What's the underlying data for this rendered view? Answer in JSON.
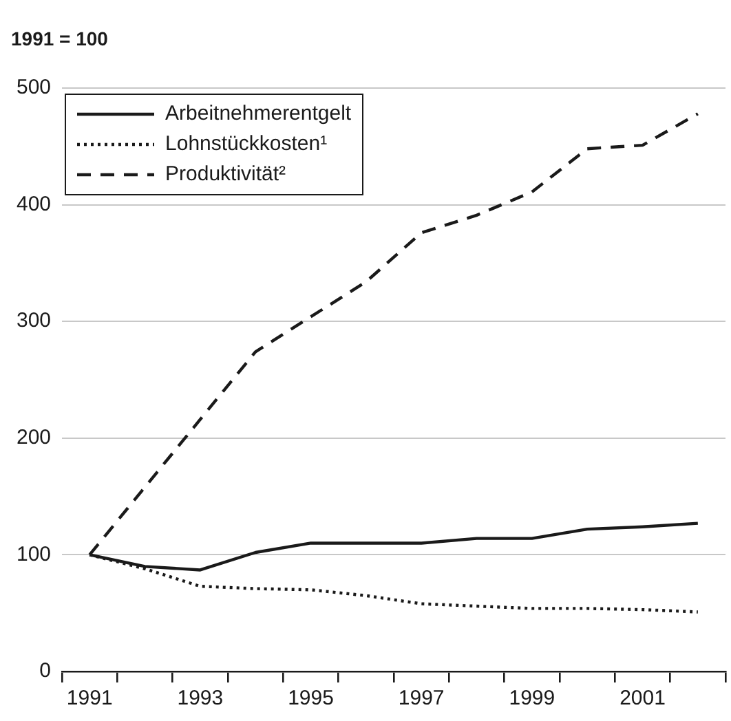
{
  "chart_data": {
    "type": "line",
    "ylabel": "1991 = 100",
    "categories": [
      "1991",
      null,
      "1993",
      null,
      "1995",
      null,
      "1997",
      null,
      "1999",
      null,
      "2001",
      null
    ],
    "series": [
      {
        "name": "Arbeitnehmerentgelt",
        "color": "#1a1a1a",
        "line_style": "solid",
        "values": [
          100,
          90,
          87,
          102,
          110,
          110,
          110,
          114,
          114,
          122,
          124,
          127
        ]
      },
      {
        "name": "Lohnstückkosten¹",
        "color": "#1a1a1a",
        "line_style": "dotted",
        "values": [
          100,
          88,
          73,
          71,
          70,
          65,
          58,
          56,
          54,
          54,
          53,
          51
        ]
      },
      {
        "name": "Produktivität²",
        "color": "#1a1a1a",
        "line_style": "dashed",
        "values": [
          100,
          158,
          216,
          274,
          304,
          334,
          376,
          391,
          411,
          448,
          451,
          478
        ]
      }
    ],
    "ylim": [
      0,
      500
    ],
    "yticks": [
      0,
      100,
      200,
      300,
      400,
      500
    ],
    "grid": "y",
    "legend": "top left",
    "marker": "none"
  }
}
